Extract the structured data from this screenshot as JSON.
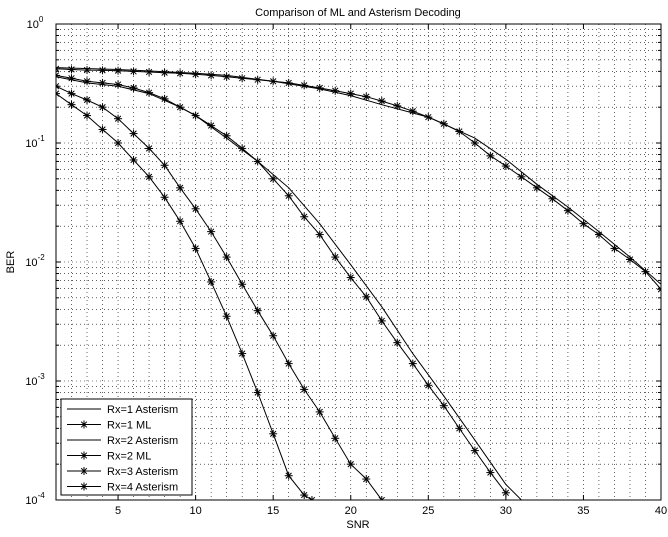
{
  "chart_data": {
    "type": "line",
    "title": "Comparison of ML and Asterism Decoding",
    "xlabel": "SNR",
    "ylabel": "BER",
    "xlim": [
      1,
      40
    ],
    "ylim": [
      0.0001,
      1
    ],
    "yscale": "log",
    "grid": true,
    "legend_position": "bottom-left",
    "x_ticks": [
      {
        "value": 5,
        "label": "5"
      },
      {
        "value": 10,
        "label": "10"
      },
      {
        "value": 15,
        "label": "15"
      },
      {
        "value": 20,
        "label": "20"
      },
      {
        "value": 25,
        "label": "25"
      },
      {
        "value": 30,
        "label": "30"
      },
      {
        "value": 35,
        "label": "35"
      },
      {
        "value": 40,
        "label": "40"
      }
    ],
    "y_ticks": [
      {
        "value": 1,
        "base": "10",
        "exp": "0"
      },
      {
        "value": 0.1,
        "base": "10",
        "exp": "-1"
      },
      {
        "value": 0.01,
        "base": "10",
        "exp": "-2"
      },
      {
        "value": 0.001,
        "base": "10",
        "exp": "-3"
      },
      {
        "value": 0.0001,
        "base": "10",
        "exp": "-4"
      }
    ],
    "series": [
      {
        "name": "Rx=1 Asterism",
        "marker": "none",
        "x": [
          1,
          5,
          10,
          12,
          15,
          18,
          20,
          22,
          25,
          28,
          30,
          32,
          34,
          36,
          38,
          40
        ],
        "y": [
          0.43,
          0.415,
          0.385,
          0.37,
          0.33,
          0.285,
          0.25,
          0.21,
          0.165,
          0.11,
          0.073,
          0.045,
          0.029,
          0.018,
          0.011,
          0.0065
        ]
      },
      {
        "name": "Rx=1 ML",
        "marker": "star",
        "x": [
          1,
          2,
          3,
          4,
          5,
          6,
          7,
          8,
          9,
          10,
          11,
          12,
          13,
          14,
          15,
          16,
          17,
          18,
          19,
          20,
          21,
          22,
          23,
          24,
          25,
          26,
          27,
          28,
          29,
          30,
          31,
          32,
          33,
          34,
          35,
          36,
          37,
          38,
          39,
          40
        ],
        "y": [
          0.42,
          0.415,
          0.41,
          0.408,
          0.405,
          0.4,
          0.395,
          0.39,
          0.385,
          0.378,
          0.37,
          0.36,
          0.35,
          0.34,
          0.33,
          0.32,
          0.305,
          0.29,
          0.275,
          0.26,
          0.245,
          0.225,
          0.205,
          0.185,
          0.165,
          0.145,
          0.125,
          0.1,
          0.078,
          0.064,
          0.052,
          0.042,
          0.034,
          0.027,
          0.021,
          0.017,
          0.013,
          0.0105,
          0.0083,
          0.0059
        ]
      },
      {
        "name": "Rx=2 Asterism",
        "marker": "none",
        "x": [
          1,
          3,
          5,
          7,
          9,
          10,
          12,
          14,
          16,
          18,
          20,
          22,
          24,
          26,
          28,
          30,
          31
        ],
        "y": [
          0.36,
          0.32,
          0.3,
          0.26,
          0.2,
          0.17,
          0.11,
          0.07,
          0.042,
          0.021,
          0.0095,
          0.0042,
          0.0017,
          0.00075,
          0.00032,
          0.000135,
          0.0001
        ]
      },
      {
        "name": "Rx=2 ML",
        "marker": "star",
        "x": [
          1,
          2,
          3,
          4,
          5,
          6,
          7,
          8,
          9,
          10,
          11,
          12,
          13,
          14,
          15,
          16,
          17,
          18,
          19,
          20,
          21,
          22,
          23,
          24,
          25,
          26,
          27,
          28,
          29,
          30
        ],
        "y": [
          0.37,
          0.35,
          0.33,
          0.32,
          0.31,
          0.29,
          0.265,
          0.235,
          0.2,
          0.17,
          0.14,
          0.115,
          0.09,
          0.07,
          0.05,
          0.036,
          0.024,
          0.017,
          0.011,
          0.0074,
          0.0051,
          0.0032,
          0.0021,
          0.0014,
          0.00092,
          0.00062,
          0.0004,
          0.00026,
          0.00017,
          0.000115
        ]
      },
      {
        "name": "Rx=3 Asterism",
        "marker": "star",
        "x": [
          1,
          2,
          3,
          4,
          5,
          6,
          7,
          8,
          9,
          10,
          11,
          12,
          13,
          14,
          15,
          16,
          17,
          18,
          19,
          20,
          21,
          22
        ],
        "y": [
          0.3,
          0.26,
          0.23,
          0.2,
          0.16,
          0.12,
          0.09,
          0.065,
          0.042,
          0.028,
          0.018,
          0.011,
          0.0065,
          0.0039,
          0.0024,
          0.0014,
          0.00085,
          0.00055,
          0.00033,
          0.0002,
          0.00015,
          0.0001
        ]
      },
      {
        "name": "Rx=4 Asterism",
        "marker": "star",
        "x": [
          1,
          2,
          3,
          4,
          5,
          6,
          7,
          8,
          9,
          10,
          11,
          12,
          13,
          14,
          15,
          16,
          17,
          17.5
        ],
        "y": [
          0.26,
          0.21,
          0.17,
          0.13,
          0.1,
          0.072,
          0.052,
          0.035,
          0.022,
          0.013,
          0.0068,
          0.0035,
          0.0017,
          0.0008,
          0.00036,
          0.00016,
          0.00011,
          0.0001
        ]
      }
    ]
  }
}
